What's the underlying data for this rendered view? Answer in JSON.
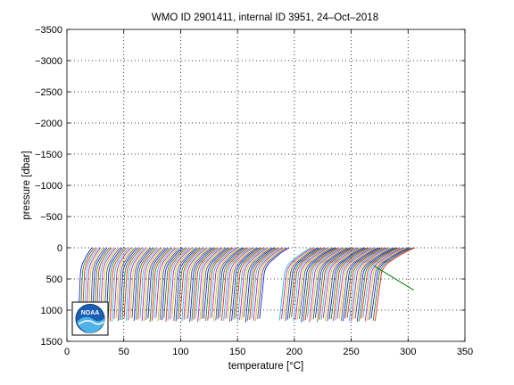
{
  "chart_data": {
    "type": "line",
    "title": "WMO ID 2901411, internal ID 3951, 24–Oct–2018",
    "xlabel": "temperature [°C]",
    "ylabel": "pressure [dbar]",
    "xlim": [
      0,
      350
    ],
    "ylim": [
      -3500,
      1500
    ],
    "y_reversed": true,
    "grid": true,
    "xticks": [
      "0",
      "50",
      "100",
      "150",
      "200",
      "250",
      "300",
      "350"
    ],
    "yticks": [
      "−3500",
      "−3000",
      "−2500",
      "−2000",
      "−1500",
      "−1000",
      "−500",
      "0",
      "500",
      "1000",
      "1500"
    ],
    "xtick_values": [
      0,
      50,
      100,
      150,
      200,
      250,
      300,
      350
    ],
    "ytick_values": [
      -3500,
      -3000,
      -2500,
      -2000,
      -1500,
      -1000,
      -500,
      0,
      500,
      1000,
      1500
    ],
    "profiles": {
      "count": 150,
      "surface_pressure": 0,
      "bottom_pressure": 1200,
      "surface_x_range": [
        22,
        306
      ],
      "bottom_x_range": [
        10,
        271
      ],
      "gap_x_range": [
        197,
        213
      ]
    },
    "outlier_line": {
      "x": [
        270,
        305
      ],
      "y": [
        290,
        680
      ]
    },
    "colors": [
      "#0000ff",
      "#008000",
      "#ff0000",
      "#00bfbf",
      "#bf00bf",
      "#bfbf00",
      "#404040"
    ]
  },
  "logo": {
    "text": "NOAA",
    "name": "noaa-logo"
  }
}
